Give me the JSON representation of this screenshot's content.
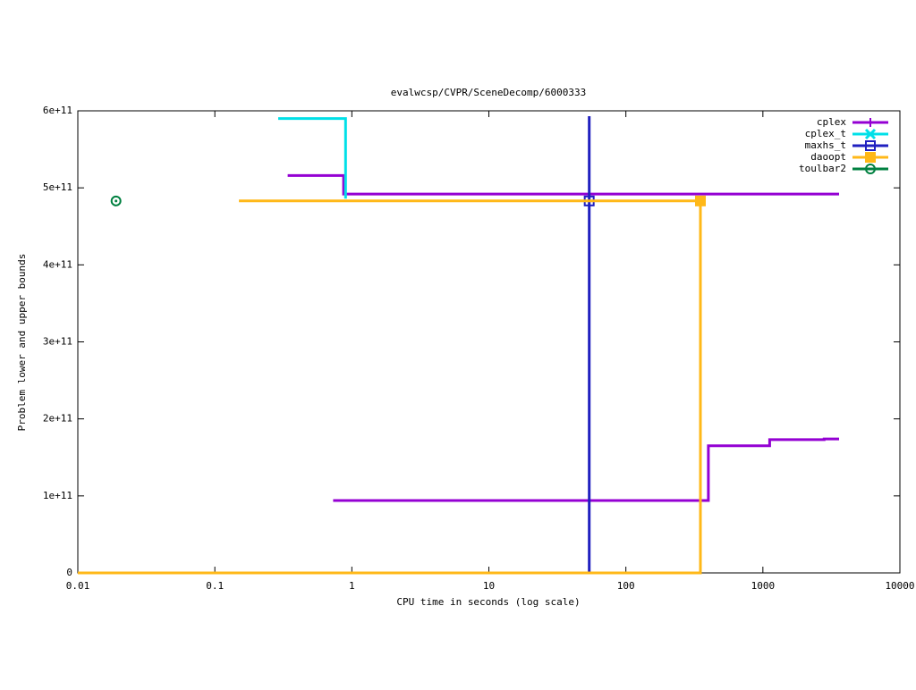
{
  "chart_data": {
    "type": "line",
    "title": "evalwcsp/CVPR/SceneDecomp/6000333",
    "x_label": "CPU time in seconds (log scale)",
    "y_label": "Problem lower and upper bounds",
    "x_log": true,
    "xlim": [
      0.01,
      10000
    ],
    "xticks": [
      0.01,
      0.1,
      1,
      10,
      100,
      1000,
      10000
    ],
    "ylim": [
      0,
      600000000000
    ],
    "yticks": [
      0,
      {
        "value": 100000000000,
        "label": "1e+11"
      },
      {
        "value": 200000000000,
        "label": "2e+11"
      },
      {
        "value": 300000000000,
        "label": "3e+11"
      },
      {
        "value": 400000000000,
        "label": "4e+11"
      },
      {
        "value": 500000000000,
        "label": "5e+11"
      },
      {
        "value": 600000000000,
        "label": "6e+11"
      }
    ],
    "legend": "top-right",
    "series": [
      {
        "name": "cplex",
        "color": "#9400d3",
        "marker": "plus",
        "x": [
          0.34,
          0.87,
          0.87,
          3600,
          null,
          0.73,
          400,
          400,
          1120,
          1120,
          2800,
          2800,
          3600
        ],
        "values": [
          516000000000,
          516000000000,
          492000000000,
          492000000000,
          null,
          94000000000,
          94000000000,
          165000000000,
          165000000000,
          173000000000,
          173000000000,
          174000000000,
          174000000000
        ]
      },
      {
        "name": "cplex_t",
        "color": "#00e0e8",
        "marker": "cross",
        "x": [
          0.29,
          0.9,
          0.9
        ],
        "values": [
          590000000000,
          590000000000,
          486000000000
        ]
      },
      {
        "name": "maxhs_t",
        "color": "#2020c0",
        "marker": "open-square",
        "x": [
          54,
          54
        ],
        "values": [
          0,
          593000000000
        ],
        "marker_x": [
          54
        ],
        "marker_values": [
          483000000000
        ]
      },
      {
        "name": "daoopt",
        "color": "#ffb818",
        "marker": "filled-square",
        "x": [
          0.15,
          350,
          350,
          0.01
        ],
        "values": [
          483000000000,
          483000000000,
          0,
          0
        ],
        "marker_x": [
          350
        ],
        "marker_values": [
          483000000000
        ]
      },
      {
        "name": "toulbar2",
        "color": "#008040",
        "marker": "circle",
        "marker_x": [
          0.019
        ],
        "marker_values": [
          483000000000
        ]
      }
    ]
  }
}
